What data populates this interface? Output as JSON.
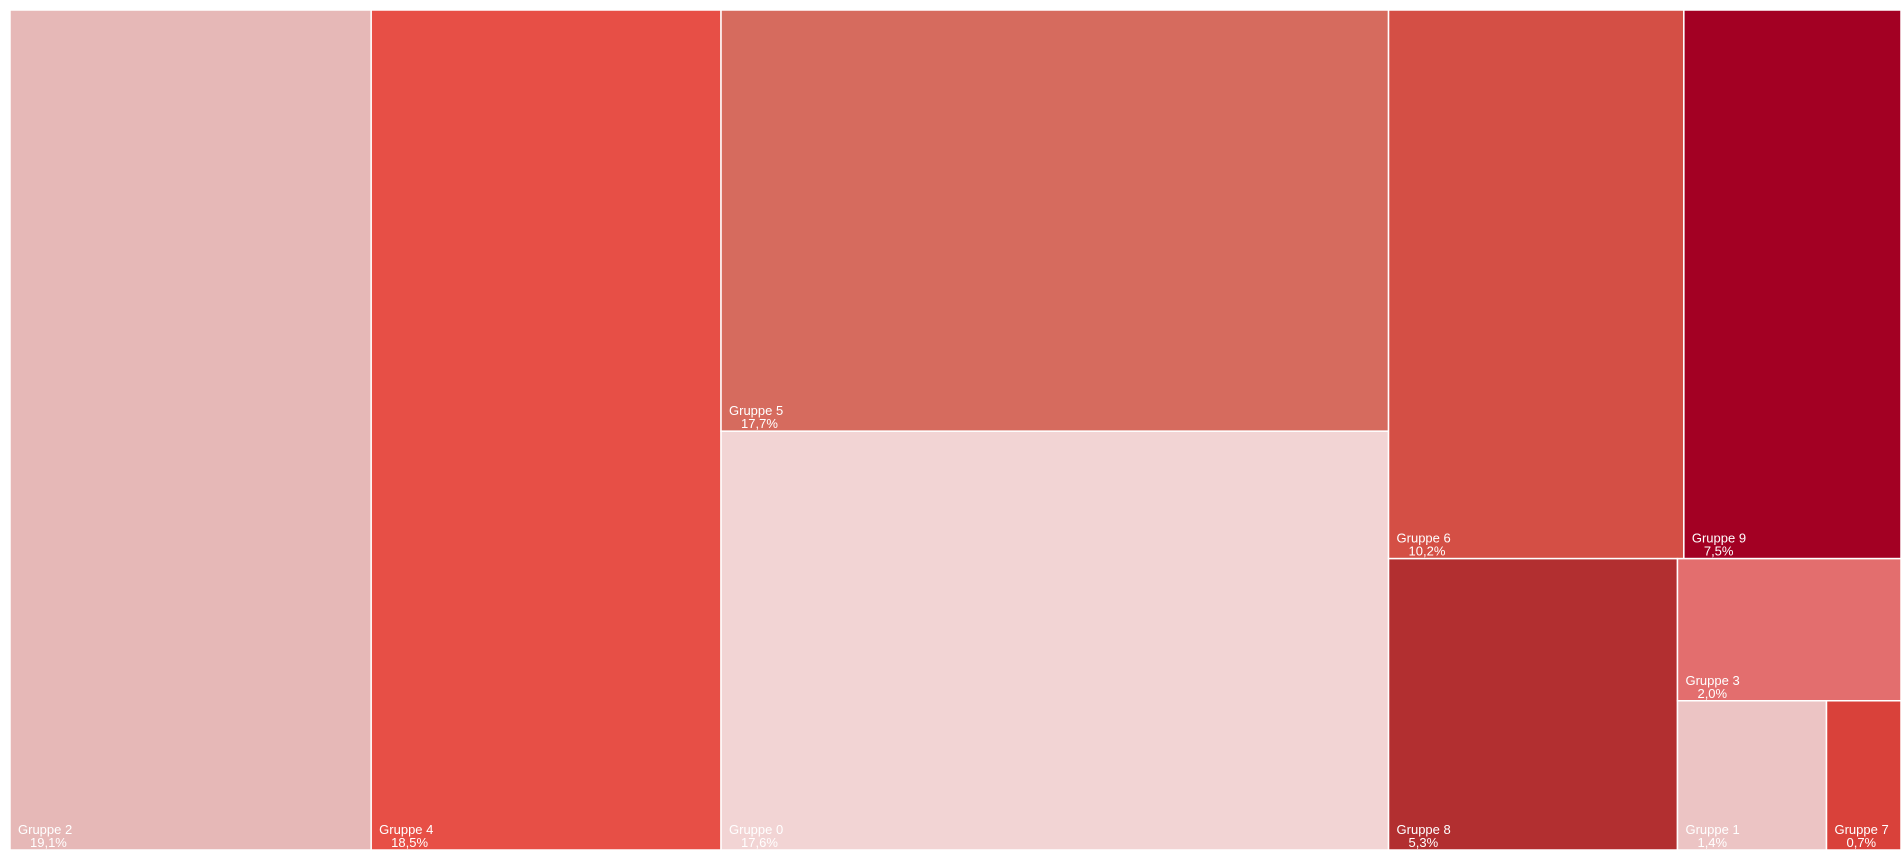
{
  "chart_data": {
    "type": "treemap",
    "categories": [
      "Gruppe 2",
      "Gruppe 4",
      "Gruppe 5",
      "Gruppe 0",
      "Gruppe 6",
      "Gruppe 9",
      "Gruppe 8",
      "Gruppe 3",
      "Gruppe 1",
      "Gruppe 7"
    ],
    "values": [
      19.1,
      18.5,
      17.7,
      17.6,
      10.2,
      7.5,
      5.3,
      2.0,
      1.4,
      0.7
    ],
    "value_labels": [
      "19,1%",
      "18,5%",
      "17,7%",
      "17,6%",
      "10,2%",
      "7,5%",
      "5,3%",
      "2,0%",
      "1,4%",
      "0,7%"
    ],
    "colors": [
      "#e6b8b7",
      "#e74f46",
      "#d66b5e",
      "#f2d4d4",
      "#d44f45",
      "#a30023",
      "#b22f30",
      "#e36e6e",
      "#ecc4c4",
      "#d9413a"
    ]
  }
}
